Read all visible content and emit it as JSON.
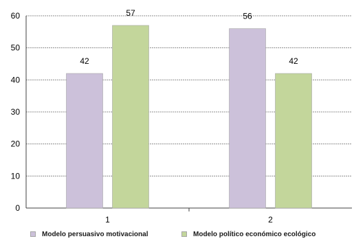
{
  "chart_data": {
    "type": "bar",
    "categories": [
      "1",
      "2"
    ],
    "series": [
      {
        "name": "Modelo persuasivo  motivacional",
        "values": [
          42,
          56
        ],
        "color": "#ccc1da"
      },
      {
        "name": "Modelo político  económico ecológico",
        "values": [
          57,
          42
        ],
        "color": "#c3d69b"
      }
    ],
    "ylim": [
      0,
      60
    ],
    "yticks": [
      0,
      10,
      20,
      30,
      40,
      50,
      60
    ],
    "ytick_labels": [
      "0",
      "10",
      "20",
      "30",
      "40",
      "50",
      "60"
    ],
    "grid": true,
    "data_labels": true,
    "legend_position": "bottom",
    "title": "",
    "xlabel": "",
    "ylabel": ""
  }
}
